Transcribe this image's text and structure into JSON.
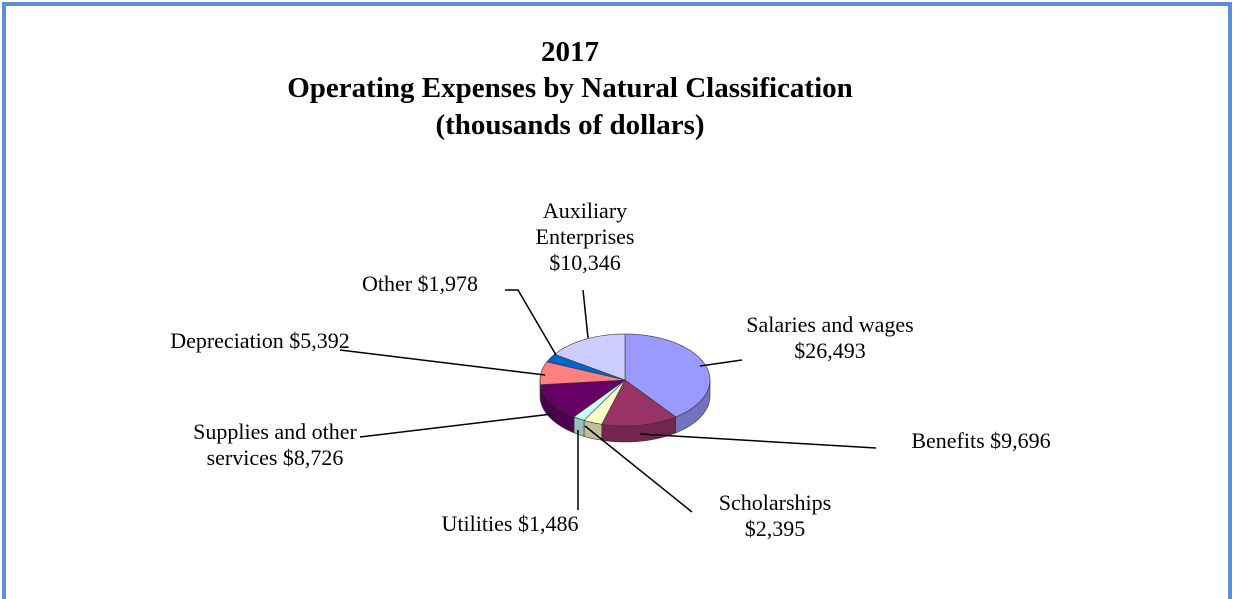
{
  "chart_data": {
    "type": "pie",
    "pie_3d": true,
    "title": [
      "2017",
      "Operating Expenses by Natural Classification",
      "(thousands of dollars)"
    ],
    "categories": [
      "Salaries and wages",
      "Benefits",
      "Scholarships",
      "Utilities",
      "Supplies and other services",
      "Depreciation",
      "Other",
      "Auxiliary Enterprises"
    ],
    "values": [
      26493,
      9696,
      2395,
      1486,
      8726,
      5392,
      1978,
      10346
    ],
    "value_labels": [
      "$26,493",
      "$9,696",
      "$2,395",
      "$1,486",
      "$8,726",
      "$5,392",
      "$1,978",
      "$10,346"
    ],
    "colors": [
      "#9999ff",
      "#993366",
      "#ffffcc",
      "#ccffff",
      "#660066",
      "#ff8080",
      "#0066cc",
      "#ccccff"
    ]
  }
}
